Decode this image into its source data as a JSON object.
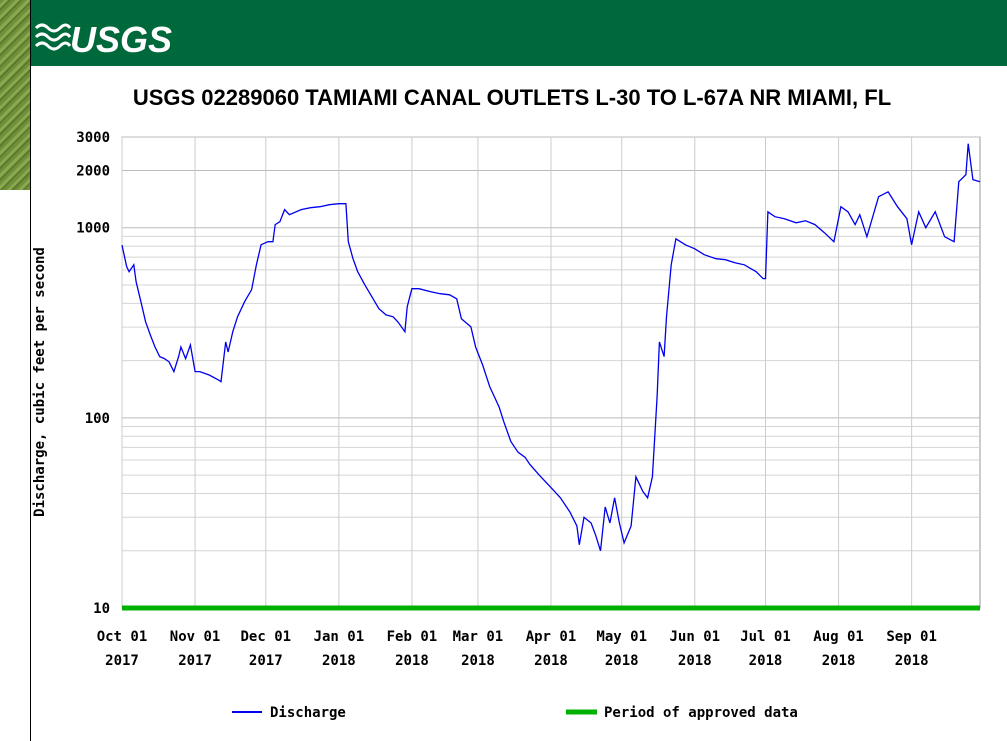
{
  "header": {
    "logo": "USGS"
  },
  "chart_data": {
    "type": "line",
    "title": "USGS 02289060 TAMIAMI CANAL OUTLETS L-30 TO L-67A NR MIAMI, FL",
    "y_label": "Discharge, cubic feet per second",
    "log_scale": true,
    "grid": true,
    "ylim": [
      10,
      3000
    ],
    "yticks": [
      10,
      100,
      1000,
      2000,
      3000
    ],
    "y_minor_gridlines": [
      20,
      30,
      40,
      50,
      60,
      70,
      80,
      90,
      200,
      300,
      400,
      500,
      600,
      700,
      800,
      900
    ],
    "xlim": [
      "2017-10-01",
      "2018-09-30"
    ],
    "xticks": [
      {
        "value": "2017-10-01",
        "label": "Oct 01",
        "year": "2017"
      },
      {
        "value": "2017-11-01",
        "label": "Nov 01",
        "year": "2017"
      },
      {
        "value": "2017-12-01",
        "label": "Dec 01",
        "year": "2017"
      },
      {
        "value": "2018-01-01",
        "label": "Jan 01",
        "year": "2018"
      },
      {
        "value": "2018-02-01",
        "label": "Feb 01",
        "year": "2018"
      },
      {
        "value": "2018-03-01",
        "label": "Mar 01",
        "year": "2018"
      },
      {
        "value": "2018-04-01",
        "label": "Apr 01",
        "year": "2018"
      },
      {
        "value": "2018-05-01",
        "label": "May 01",
        "year": "2018"
      },
      {
        "value": "2018-06-01",
        "label": "Jun 01",
        "year": "2018"
      },
      {
        "value": "2018-07-01",
        "label": "Jul 01",
        "year": "2018"
      },
      {
        "value": "2018-08-01",
        "label": "Aug 01",
        "year": "2018"
      },
      {
        "value": "2018-09-01",
        "label": "Sep 01",
        "year": "2018"
      }
    ],
    "x": [
      "2017-10-01",
      "2017-10-03",
      "2017-10-04",
      "2017-10-06",
      "2017-10-07",
      "2017-10-09",
      "2017-10-11",
      "2017-10-13",
      "2017-10-15",
      "2017-10-17",
      "2017-10-19",
      "2017-10-21",
      "2017-10-23",
      "2017-10-25",
      "2017-10-26",
      "2017-10-28",
      "2017-10-30",
      "2017-11-01",
      "2017-11-03",
      "2017-11-07",
      "2017-11-11",
      "2017-11-12",
      "2017-11-14",
      "2017-11-15",
      "2017-11-17",
      "2017-11-19",
      "2017-11-22",
      "2017-11-25",
      "2017-11-27",
      "2017-11-29",
      "2017-12-02",
      "2017-12-04",
      "2017-12-05",
      "2017-12-07",
      "2017-12-09",
      "2017-12-11",
      "2017-12-16",
      "2017-12-20",
      "2017-12-24",
      "2017-12-28",
      "2018-01-01",
      "2018-01-04",
      "2018-01-05",
      "2018-01-07",
      "2018-01-09",
      "2018-01-12",
      "2018-01-15",
      "2018-01-18",
      "2018-01-21",
      "2018-01-24",
      "2018-01-26",
      "2018-01-29",
      "2018-01-30",
      "2018-02-01",
      "2018-02-04",
      "2018-02-09",
      "2018-02-13",
      "2018-02-17",
      "2018-02-20",
      "2018-02-22",
      "2018-02-26",
      "2018-02-28",
      "2018-03-03",
      "2018-03-06",
      "2018-03-10",
      "2018-03-12",
      "2018-03-15",
      "2018-03-18",
      "2018-03-21",
      "2018-03-23",
      "2018-03-27",
      "2018-04-01",
      "2018-04-05",
      "2018-04-09",
      "2018-04-12",
      "2018-04-13",
      "2018-04-15",
      "2018-04-18",
      "2018-04-20",
      "2018-04-22",
      "2018-04-24",
      "2018-04-26",
      "2018-04-28",
      "2018-04-30",
      "2018-05-02",
      "2018-05-05",
      "2018-05-07",
      "2018-05-10",
      "2018-05-12",
      "2018-05-14",
      "2018-05-16",
      "2018-05-17",
      "2018-05-19",
      "2018-05-20",
      "2018-05-22",
      "2018-05-24",
      "2018-05-28",
      "2018-06-01",
      "2018-06-05",
      "2018-06-10",
      "2018-06-14",
      "2018-06-18",
      "2018-06-22",
      "2018-06-27",
      "2018-06-30",
      "2018-07-01",
      "2018-07-02",
      "2018-07-05",
      "2018-07-09",
      "2018-07-14",
      "2018-07-18",
      "2018-07-22",
      "2018-07-26",
      "2018-07-30",
      "2018-08-02",
      "2018-08-05",
      "2018-08-08",
      "2018-08-10",
      "2018-08-13",
      "2018-08-18",
      "2018-08-22",
      "2018-08-26",
      "2018-08-30",
      "2018-09-01",
      "2018-09-04",
      "2018-09-07",
      "2018-09-11",
      "2018-09-15",
      "2018-09-19",
      "2018-09-21",
      "2018-09-24",
      "2018-09-25",
      "2018-09-27",
      "2018-09-30"
    ],
    "series": [
      {
        "name": "Discharge",
        "color": "#0000ee",
        "values": [
          810,
          623,
          587,
          638,
          520,
          408,
          320,
          273,
          236,
          210,
          205,
          197,
          175,
          210,
          236,
          205,
          242,
          175,
          175,
          168,
          158,
          155,
          251,
          222,
          284,
          340,
          408,
          472,
          638,
          814,
          844,
          844,
          1038,
          1076,
          1245,
          1171,
          1245,
          1274,
          1290,
          1322,
          1337,
          1337,
          844,
          687,
          587,
          501,
          433,
          375,
          348,
          340,
          320,
          284,
          384,
          478,
          478,
          460,
          450,
          444,
          423,
          332,
          301,
          236,
          190,
          146,
          114,
          95,
          75,
          66,
          62,
          57,
          50,
          43,
          38,
          32,
          27,
          21.5,
          30,
          28,
          24,
          20,
          34,
          28,
          38,
          28,
          22,
          27,
          49,
          41,
          38,
          49,
          129,
          251,
          210,
          340,
          638,
          874,
          813,
          775,
          721,
          687,
          679,
          655,
          638,
          587,
          540,
          540,
          1213,
          1143,
          1115,
          1062,
          1088,
          1038,
          942,
          844,
          1290,
          1213,
          1038,
          1171,
          897,
          1456,
          1545,
          1290,
          1115,
          813,
          1213,
          1000,
          1213,
          897,
          844,
          1745,
          1901,
          2767,
          1791,
          1745
        ]
      }
    ],
    "approved_period": {
      "name": "Period of approved data",
      "color": "#00b000",
      "start": "2017-10-01",
      "end": "2018-09-30"
    }
  }
}
